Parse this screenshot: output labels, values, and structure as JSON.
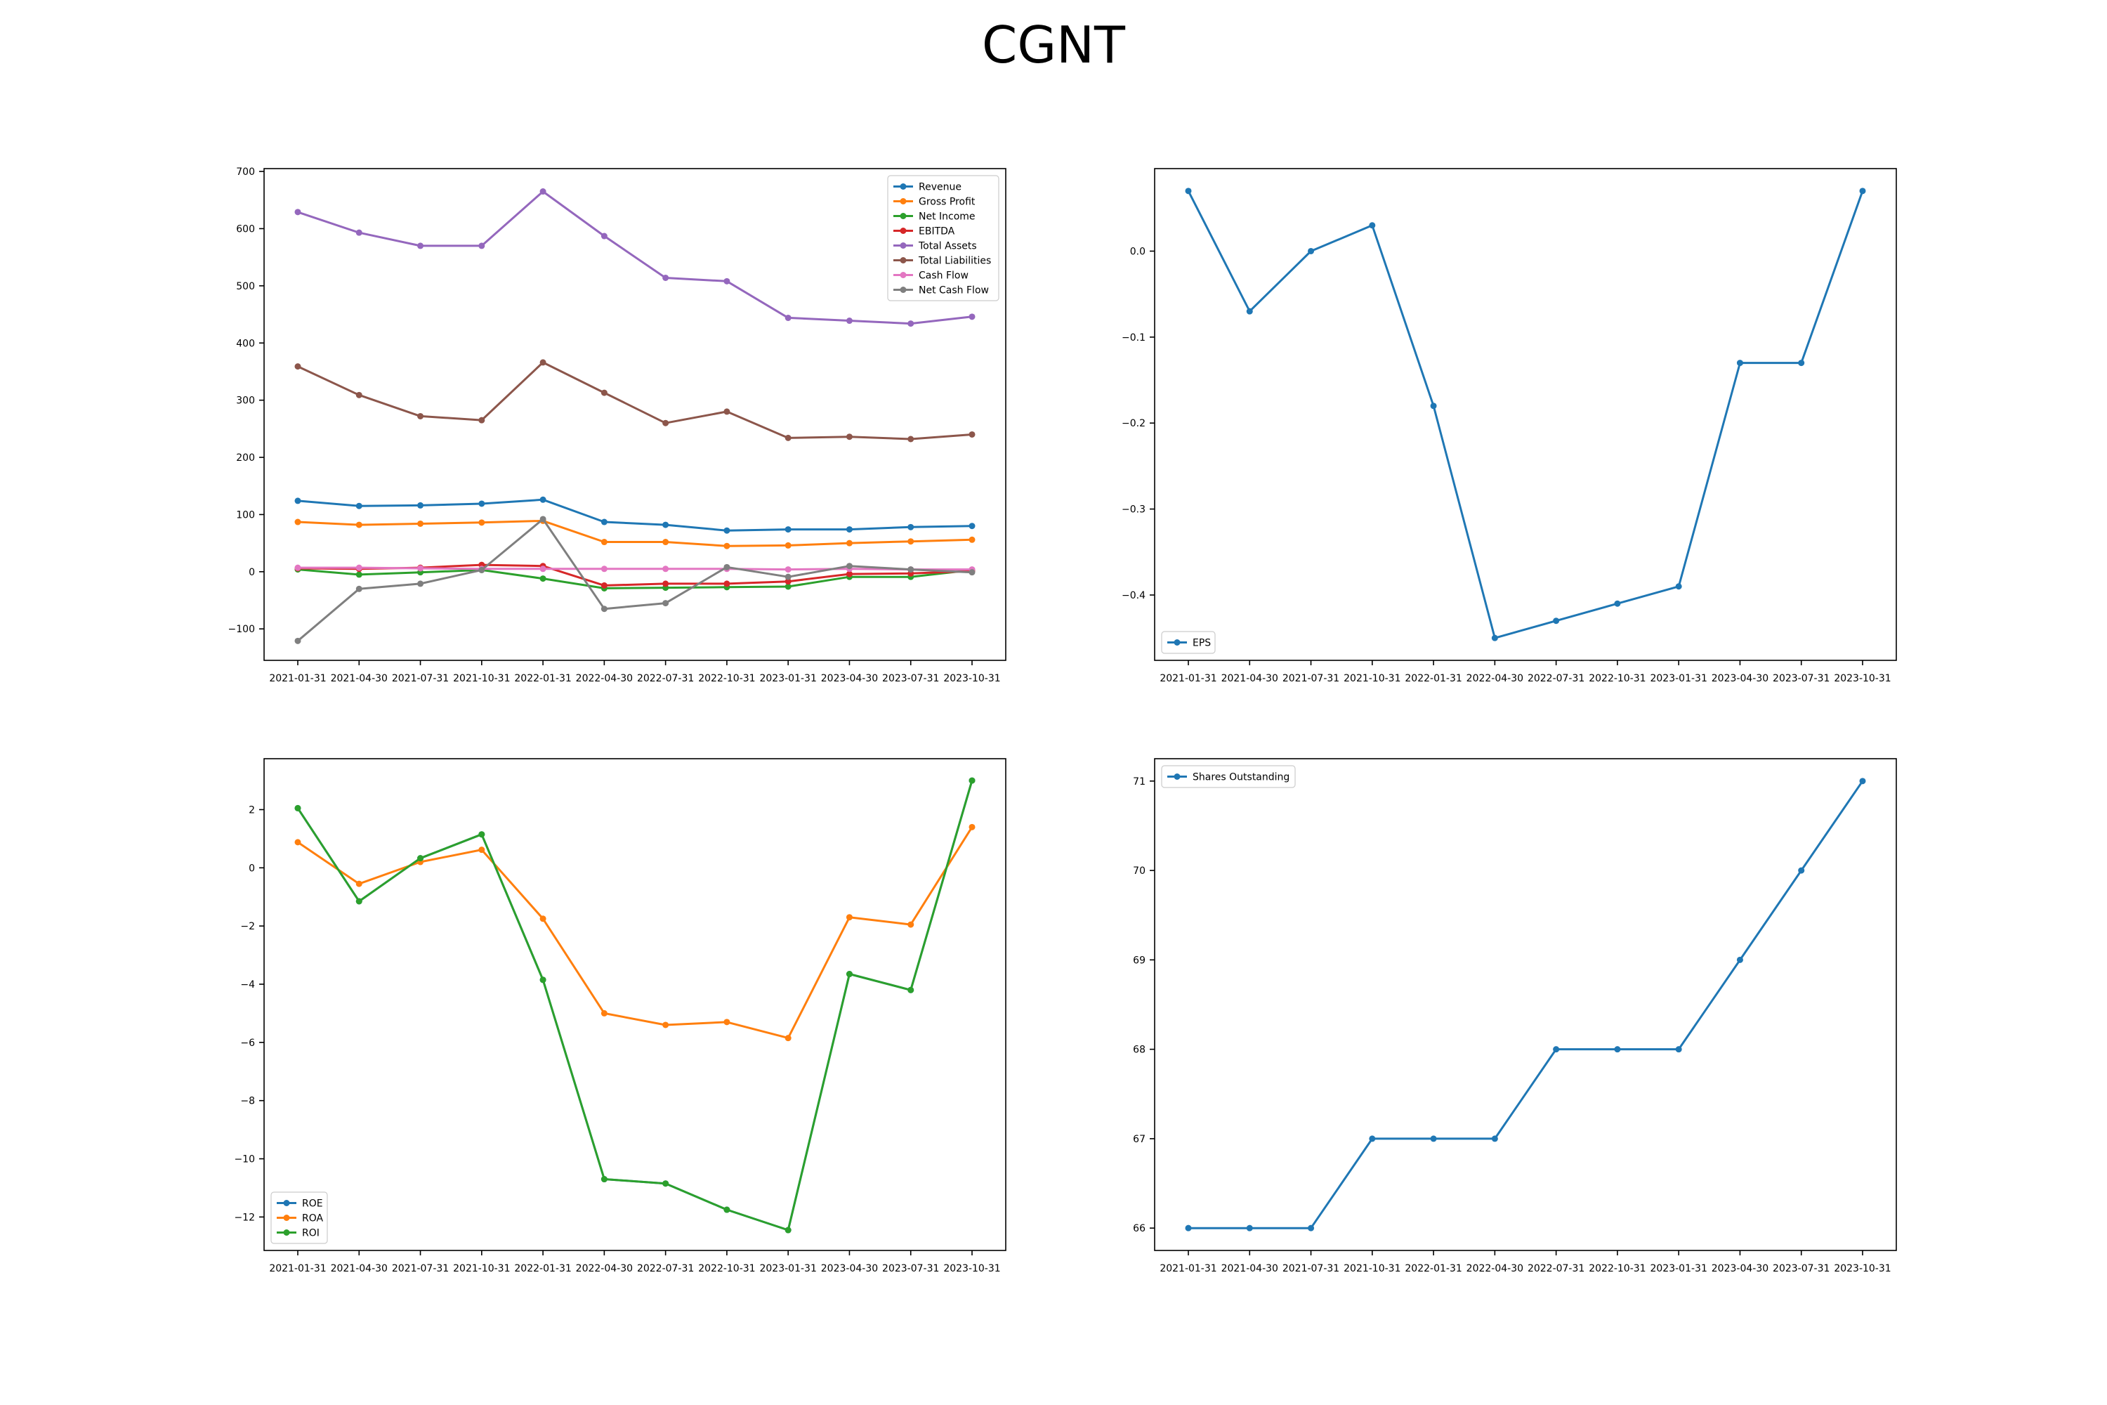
{
  "title": "CGNT",
  "colors": {
    "c0": "#1f77b4",
    "c1": "#ff7f0e",
    "c2": "#2ca02c",
    "c3": "#d62728",
    "c4": "#9467bd",
    "c5": "#8c564b",
    "c6": "#e377c2",
    "c7": "#7f7f7f"
  },
  "chart_data": [
    {
      "type": "line",
      "x": [
        "2021-01-31",
        "2021-04-30",
        "2021-07-31",
        "2021-10-31",
        "2022-01-31",
        "2022-04-30",
        "2022-07-31",
        "2022-10-31",
        "2023-01-31",
        "2023-04-30",
        "2023-07-31",
        "2023-10-31"
      ],
      "ylim": [
        -155,
        705
      ],
      "yticks": [
        -100,
        0,
        100,
        200,
        300,
        400,
        500,
        600,
        700
      ],
      "ytick_labels": [
        "−100",
        "0",
        "100",
        "200",
        "300",
        "400",
        "500",
        "600",
        "700"
      ],
      "legend": "upper right",
      "series": [
        {
          "name": "Revenue",
          "color": "#1f77b4",
          "values": [
            124,
            115,
            116,
            119,
            126,
            87,
            82,
            72,
            74,
            74,
            78,
            80
          ]
        },
        {
          "name": "Gross Profit",
          "color": "#ff7f0e",
          "values": [
            87,
            82,
            84,
            86,
            89,
            52,
            52,
            45,
            46,
            50,
            53,
            56
          ]
        },
        {
          "name": "Net Income",
          "color": "#2ca02c",
          "values": [
            4,
            -5,
            -1,
            3,
            -12,
            -29,
            -28,
            -27,
            -26,
            -9,
            -9,
            3
          ]
        },
        {
          "name": "EBITDA",
          "color": "#d62728",
          "values": [
            6,
            5,
            7,
            12,
            10,
            -24,
            -21,
            -21,
            -17,
            -4,
            -3,
            1
          ]
        },
        {
          "name": "Total Assets",
          "color": "#9467bd",
          "values": [
            629,
            593,
            570,
            570,
            665,
            587,
            514,
            508,
            444,
            439,
            434,
            446
          ]
        },
        {
          "name": "Total Liabilities",
          "color": "#8c564b",
          "values": [
            359,
            309,
            272,
            265,
            366,
            313,
            260,
            280,
            234,
            236,
            232,
            240
          ]
        },
        {
          "name": "Cash Flow",
          "color": "#e377c2",
          "values": [
            7,
            7,
            6,
            5,
            5,
            5,
            5,
            5,
            4,
            5,
            4,
            4
          ]
        },
        {
          "name": "Net Cash Flow",
          "color": "#7f7f7f",
          "values": [
            -121,
            -30,
            -21,
            3,
            92,
            -65,
            -55,
            8,
            -9,
            10,
            4,
            -1
          ]
        }
      ]
    },
    {
      "type": "line",
      "x": [
        "2021-01-31",
        "2021-04-30",
        "2021-07-31",
        "2021-10-31",
        "2022-01-31",
        "2022-04-30",
        "2022-07-31",
        "2022-10-31",
        "2023-01-31",
        "2023-04-30",
        "2023-07-31",
        "2023-10-31"
      ],
      "ylim": [
        -0.476,
        0.096
      ],
      "yticks": [
        -0.4,
        -0.3,
        -0.2,
        -0.1,
        0.0
      ],
      "ytick_labels": [
        "−0.4",
        "−0.3",
        "−0.2",
        "−0.1",
        "0.0"
      ],
      "legend": "lower left",
      "series": [
        {
          "name": "EPS",
          "color": "#1f77b4",
          "values": [
            0.07,
            -0.07,
            0.0,
            0.03,
            -0.18,
            -0.45,
            -0.43,
            -0.41,
            -0.39,
            -0.13,
            -0.13,
            0.07
          ]
        }
      ]
    },
    {
      "type": "line",
      "x": [
        "2021-01-31",
        "2021-04-30",
        "2021-07-31",
        "2021-10-31",
        "2022-01-31",
        "2022-04-30",
        "2022-07-31",
        "2022-10-31",
        "2023-01-31",
        "2023-04-30",
        "2023-07-31",
        "2023-10-31"
      ],
      "ylim": [
        -13.15,
        3.75
      ],
      "yticks": [
        -12,
        -10,
        -8,
        -6,
        -4,
        -2,
        0,
        2
      ],
      "ytick_labels": [
        "−12",
        "−10",
        "−8",
        "−6",
        "−4",
        "−2",
        "0",
        "2"
      ],
      "legend": "lower left",
      "series": [
        {
          "name": "ROE",
          "color": "#1f77b4",
          "values": [
            2.05,
            -1.15,
            0.33,
            1.15,
            -3.85,
            -10.7,
            -10.85,
            -11.75,
            -12.45,
            -3.65,
            -4.2,
            3.0
          ]
        },
        {
          "name": "ROA",
          "color": "#ff7f0e",
          "values": [
            0.88,
            -0.55,
            0.2,
            0.62,
            -1.75,
            -5.0,
            -5.4,
            -5.3,
            -5.85,
            -1.7,
            -1.95,
            1.4
          ]
        },
        {
          "name": "ROI",
          "color": "#2ca02c",
          "values": [
            2.05,
            -1.15,
            0.33,
            1.15,
            -3.85,
            -10.7,
            -10.85,
            -11.75,
            -12.45,
            -3.65,
            -4.2,
            3.0
          ]
        }
      ]
    },
    {
      "type": "line",
      "x": [
        "2021-01-31",
        "2021-04-30",
        "2021-07-31",
        "2021-10-31",
        "2022-01-31",
        "2022-04-30",
        "2022-07-31",
        "2022-10-31",
        "2023-01-31",
        "2023-04-30",
        "2023-07-31",
        "2023-10-31"
      ],
      "ylim": [
        65.75,
        71.25
      ],
      "yticks": [
        66,
        67,
        68,
        69,
        70,
        71
      ],
      "ytick_labels": [
        "66",
        "67",
        "68",
        "69",
        "70",
        "71"
      ],
      "legend": "upper left",
      "series": [
        {
          "name": "Shares Outstanding",
          "color": "#1f77b4",
          "values": [
            66,
            66,
            66,
            67,
            67,
            67,
            68,
            68,
            68,
            69,
            70,
            71
          ]
        }
      ]
    }
  ]
}
